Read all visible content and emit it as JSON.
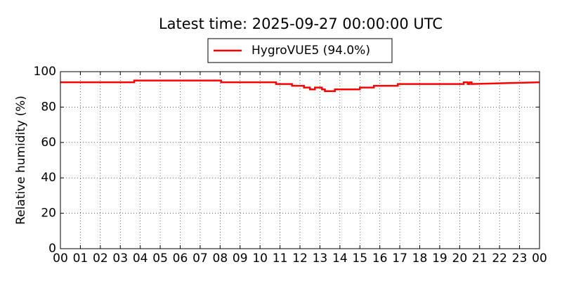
{
  "chart_data": {
    "type": "line",
    "title": "Latest time: 2025-09-27 00:00:00 UTC",
    "ylabel": "Relative humidity (%)",
    "x": [
      0,
      3.7,
      3.7,
      8.05,
      8.05,
      10.8,
      10.8,
      11.6,
      11.6,
      12.2,
      12.2,
      12.5,
      12.5,
      12.75,
      12.75,
      13.1,
      13.1,
      13.25,
      13.25,
      13.75,
      13.75,
      15.0,
      15.0,
      15.7,
      15.7,
      16.9,
      16.9,
      20.2,
      20.2,
      20.4,
      20.4,
      20.5,
      20.5,
      20.6,
      20.6,
      24
    ],
    "series": [
      {
        "name": "HygroVUE5 (94.0%)",
        "color": "#ff0000",
        "values": [
          94,
          94,
          95,
          95,
          94,
          94,
          93,
          93,
          92,
          92,
          91,
          91,
          90,
          90,
          91,
          91,
          90,
          90,
          89,
          89,
          90,
          90,
          91,
          91,
          92,
          92,
          93,
          93,
          94,
          94,
          93,
          93,
          94,
          94,
          93,
          94
        ]
      }
    ],
    "xlim": [
      0,
      24
    ],
    "xticks": [
      {
        "value": 0,
        "label": "00"
      },
      {
        "value": 1,
        "label": "01"
      },
      {
        "value": 2,
        "label": "02"
      },
      {
        "value": 3,
        "label": "03"
      },
      {
        "value": 4,
        "label": "04"
      },
      {
        "value": 5,
        "label": "05"
      },
      {
        "value": 6,
        "label": "06"
      },
      {
        "value": 7,
        "label": "07"
      },
      {
        "value": 8,
        "label": "08"
      },
      {
        "value": 9,
        "label": "09"
      },
      {
        "value": 10,
        "label": "10"
      },
      {
        "value": 11,
        "label": "11"
      },
      {
        "value": 12,
        "label": "12"
      },
      {
        "value": 13,
        "label": "13"
      },
      {
        "value": 14,
        "label": "14"
      },
      {
        "value": 15,
        "label": "15"
      },
      {
        "value": 16,
        "label": "16"
      },
      {
        "value": 17,
        "label": "17"
      },
      {
        "value": 18,
        "label": "18"
      },
      {
        "value": 19,
        "label": "19"
      },
      {
        "value": 20,
        "label": "20"
      },
      {
        "value": 21,
        "label": "21"
      },
      {
        "value": 22,
        "label": "22"
      },
      {
        "value": 23,
        "label": "23"
      },
      {
        "value": 24,
        "label": "00"
      }
    ],
    "ylim": [
      0,
      100
    ],
    "yticks": [
      0,
      20,
      40,
      60,
      80,
      100
    ],
    "grid": true
  }
}
